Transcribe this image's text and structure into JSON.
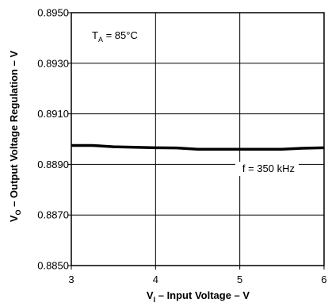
{
  "chart_data": {
    "type": "line",
    "title": "",
    "xlabel": {
      "main": "V",
      "sub": "I",
      "rest": " – Input Voltage – V"
    },
    "ylabel": {
      "main": "V",
      "sub": "O",
      "rest": " – Output Voltage Regulation – V"
    },
    "xlim": [
      3,
      6
    ],
    "ylim": [
      0.885,
      0.895
    ],
    "x_ticks": [
      3,
      4,
      5,
      6
    ],
    "x_tick_labels": [
      "3",
      "4",
      "5",
      "6"
    ],
    "y_ticks": [
      0.885,
      0.887,
      0.889,
      0.891,
      0.893,
      0.895
    ],
    "y_tick_labels": [
      "0.8850",
      "0.8870",
      "0.8890",
      "0.8910",
      "0.8930",
      "0.8950"
    ],
    "grid": true,
    "series": [
      {
        "x": [
          3.0,
          3.25,
          3.5,
          3.75,
          4.0,
          4.25,
          4.5,
          4.75,
          5.0,
          5.25,
          5.5,
          5.75,
          6.0
        ],
        "values": [
          0.88975,
          0.88975,
          0.8897,
          0.88968,
          0.88966,
          0.88965,
          0.8896,
          0.8896,
          0.8896,
          0.8896,
          0.8896,
          0.88964,
          0.88966
        ]
      }
    ],
    "annotations": {
      "condition": {
        "main": "T",
        "sub": "A",
        "rest": " = 85°C"
      },
      "frequency": "f = 350 kHz"
    }
  }
}
